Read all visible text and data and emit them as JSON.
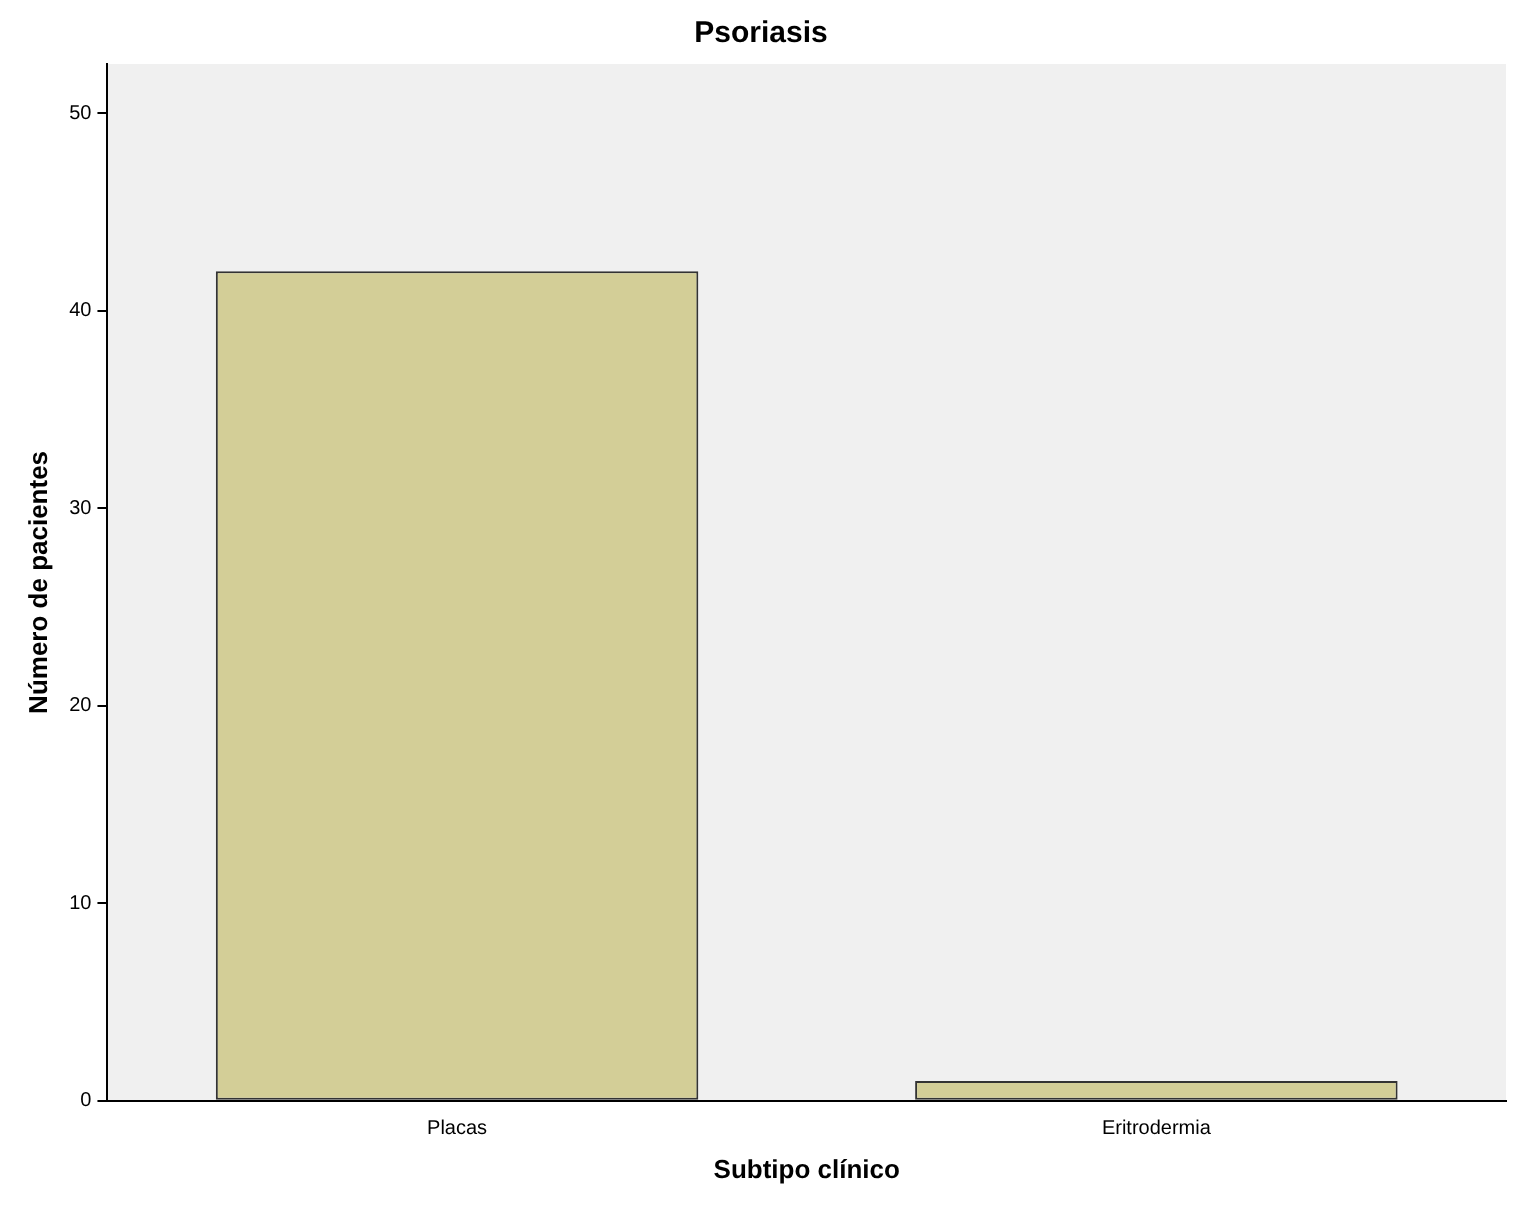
{
  "chart_data": {
    "type": "bar",
    "title": "Psoriasis",
    "xlabel": "Subtipo clínico",
    "ylabel": "Número de pacientes",
    "categories": [
      "Placas",
      "Eritrodermia"
    ],
    "values": [
      42,
      1
    ],
    "color": "#d3ce97",
    "ylim": [
      0,
      52.5
    ],
    "yticks": [
      0,
      10,
      20,
      30,
      40,
      50
    ],
    "grid": false,
    "legend": false
  }
}
